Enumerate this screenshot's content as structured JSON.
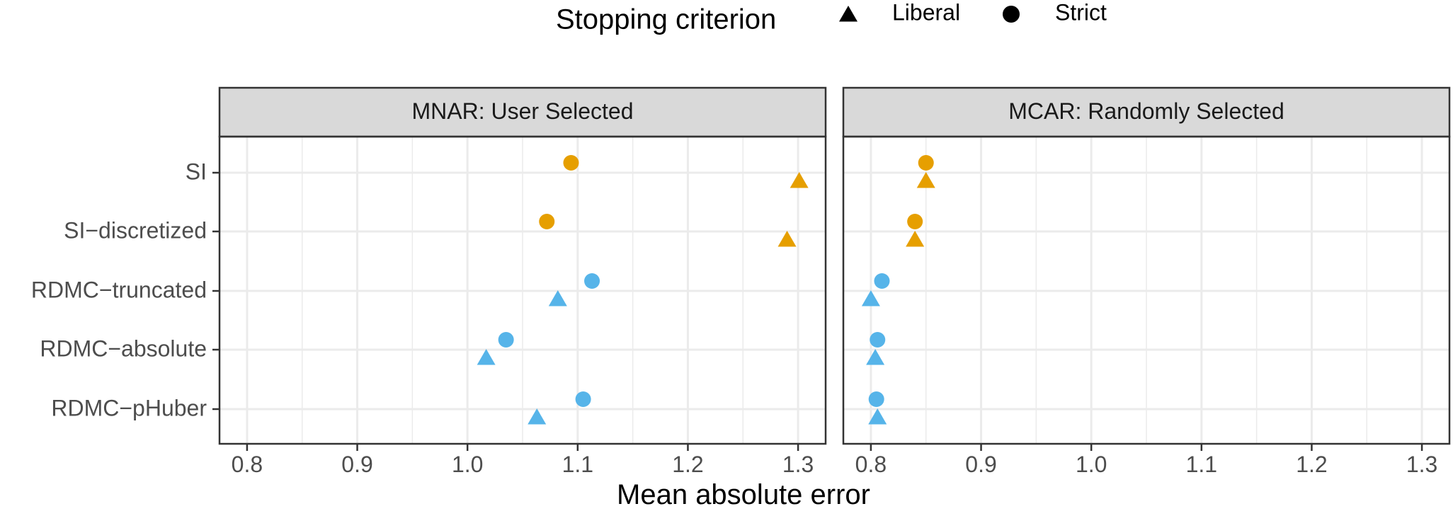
{
  "chart_data": {
    "type": "scatter",
    "xlabel": "Mean absolute error",
    "xlim": [
      0.775,
      1.325
    ],
    "xticks": [
      0.8,
      0.9,
      1.0,
      1.1,
      1.2,
      1.3
    ],
    "categories": [
      "SI",
      "SI−discretized",
      "RDMC−truncated",
      "RDMC−absolute",
      "RDMC−pHuber"
    ],
    "legend": {
      "title": "Stopping criterion",
      "position": "top",
      "items": [
        {
          "label": "Liberal",
          "shape": "triangle"
        },
        {
          "label": "Strict",
          "shape": "circle"
        }
      ]
    },
    "colors": {
      "SI": "#E69F00",
      "RDMC": "#56B4E9"
    },
    "grid": true,
    "panels": [
      {
        "title": "MNAR: User Selected",
        "points": [
          {
            "category": "SI",
            "criterion": "Strict",
            "x": 1.094
          },
          {
            "category": "SI",
            "criterion": "Liberal",
            "x": 1.301
          },
          {
            "category": "SI−discretized",
            "criterion": "Strict",
            "x": 1.072
          },
          {
            "category": "SI−discretized",
            "criterion": "Liberal",
            "x": 1.29
          },
          {
            "category": "RDMC−truncated",
            "criterion": "Strict",
            "x": 1.113
          },
          {
            "category": "RDMC−truncated",
            "criterion": "Liberal",
            "x": 1.082
          },
          {
            "category": "RDMC−absolute",
            "criterion": "Strict",
            "x": 1.035
          },
          {
            "category": "RDMC−absolute",
            "criterion": "Liberal",
            "x": 1.017
          },
          {
            "category": "RDMC−pHuber",
            "criterion": "Strict",
            "x": 1.105
          },
          {
            "category": "RDMC−pHuber",
            "criterion": "Liberal",
            "x": 1.063
          }
        ]
      },
      {
        "title": "MCAR: Randomly Selected",
        "points": [
          {
            "category": "SI",
            "criterion": "Strict",
            "x": 0.85
          },
          {
            "category": "SI",
            "criterion": "Liberal",
            "x": 0.85
          },
          {
            "category": "SI−discretized",
            "criterion": "Strict",
            "x": 0.84
          },
          {
            "category": "SI−discretized",
            "criterion": "Liberal",
            "x": 0.84
          },
          {
            "category": "RDMC−truncated",
            "criterion": "Strict",
            "x": 0.81
          },
          {
            "category": "RDMC−truncated",
            "criterion": "Liberal",
            "x": 0.8
          },
          {
            "category": "RDMC−absolute",
            "criterion": "Strict",
            "x": 0.806
          },
          {
            "category": "RDMC−absolute",
            "criterion": "Liberal",
            "x": 0.804
          },
          {
            "category": "RDMC−pHuber",
            "criterion": "Strict",
            "x": 0.805
          },
          {
            "category": "RDMC−pHuber",
            "criterion": "Liberal",
            "x": 0.806
          }
        ]
      }
    ]
  }
}
